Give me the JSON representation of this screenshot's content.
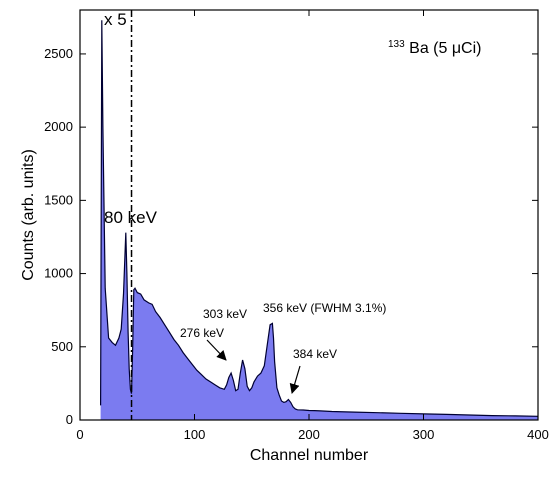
{
  "chart_data": {
    "type": "area",
    "title": "",
    "xlabel": "Channel number",
    "ylabel": "Counts (arb. units)",
    "xlim": [
      0,
      400
    ],
    "ylim": [
      0,
      2800
    ],
    "xticks": [
      0,
      100,
      200,
      300,
      400
    ],
    "yticks": [
      0,
      500,
      1000,
      1500,
      2000,
      2500
    ],
    "grid": false,
    "legend": "none",
    "colors": {
      "fill": "#7b7bf0",
      "line": "#000033"
    },
    "source_label": {
      "pre": "133",
      "main": "Ba (5 μCi)"
    },
    "scale_note": "x 5",
    "divider_x": 45,
    "series": [
      {
        "x": [
          18,
          19,
          20,
          22,
          25,
          28,
          31,
          34,
          36,
          38,
          40,
          41,
          42,
          43,
          44,
          45,
          46,
          47,
          48,
          50,
          53,
          56,
          60,
          63,
          66,
          70,
          74,
          78,
          82,
          86,
          90,
          94,
          98,
          102,
          106,
          110,
          114,
          118,
          122,
          126,
          128,
          130,
          132,
          134,
          136,
          138,
          140,
          142,
          144,
          146,
          148,
          150,
          152,
          155,
          158,
          161,
          164,
          166,
          168,
          169,
          170,
          172,
          174,
          176,
          178,
          180,
          182,
          184,
          186,
          188,
          190,
          195,
          200,
          205,
          210,
          220,
          240,
          260,
          280,
          300,
          320,
          340,
          360,
          380,
          400
        ],
        "y": [
          100,
          2730,
          2000,
          900,
          560,
          530,
          510,
          560,
          620,
          860,
          1280,
          1000,
          600,
          350,
          210,
          180,
          500,
          890,
          900,
          870,
          860,
          820,
          800,
          790,
          740,
          700,
          650,
          600,
          550,
          510,
          460,
          420,
          380,
          340,
          310,
          280,
          260,
          240,
          220,
          210,
          240,
          290,
          320,
          270,
          200,
          210,
          320,
          410,
          350,
          230,
          200,
          220,
          260,
          300,
          320,
          370,
          540,
          650,
          660,
          560,
          400,
          220,
          170,
          130,
          120,
          125,
          140,
          120,
          90,
          75,
          70,
          68,
          65,
          64,
          62,
          58,
          54,
          50,
          46,
          42,
          38,
          34,
          30,
          28,
          25
        ]
      }
    ],
    "annotations": [
      {
        "text": "80 keV"
      },
      {
        "text": "276 keV"
      },
      {
        "text": "303 keV"
      },
      {
        "text": "356 keV (FWHM 3.1%)"
      },
      {
        "text": "384 keV"
      }
    ]
  }
}
